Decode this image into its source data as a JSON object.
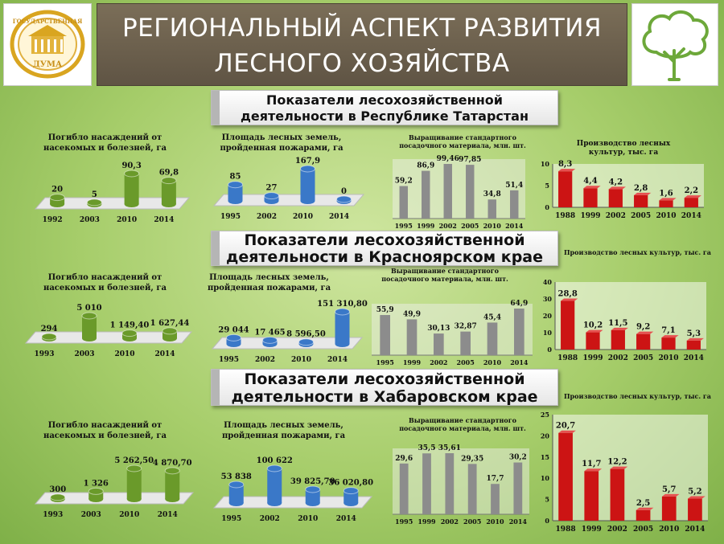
{
  "header": {
    "title_line1": "РЕГИОНАЛЬНЫЙ АСПЕКТ РАЗВИТИЯ",
    "title_line2": "ЛЕСНОГО ХОЗЯЙСТВА",
    "logo_text_top": "ГОСУДАРСТВЕННАЯ",
    "logo_text_bottom": "ДУМА"
  },
  "colors": {
    "blue": "#3a78c8",
    "green": "#6a9a2a",
    "gray": "#8c8c8c",
    "red": "#cc1414"
  },
  "sections": [
    {
      "line1": "Показатели лесохозяйственной",
      "line2": "деятельности в Республике Татарстан"
    },
    {
      "line1": "Показатели лесохозяйственной",
      "line2": "деятельности в Красноярском крае"
    },
    {
      "line1": "Показатели лесохозяйственной",
      "line2": "деятельности в Хабаровском крае"
    }
  ],
  "chart_data": [
    {
      "type": "bar",
      "style": "3d-cylinder-green",
      "title": "Погибло насаждений от насекомых и болезней, га",
      "categories": [
        "1992",
        "2003",
        "2010",
        "2014"
      ],
      "values": [
        20,
        5,
        90.3,
        69.8
      ],
      "labels": [
        "20",
        "5",
        "90,3",
        "69,8"
      ]
    },
    {
      "type": "bar",
      "style": "3d-cylinder-blue",
      "title": "Площадь лесных земель, пройденная пожарами, га",
      "categories": [
        "1995",
        "2002",
        "2010",
        "2014"
      ],
      "values": [
        85,
        27,
        167.9,
        0
      ],
      "labels": [
        "85",
        "27",
        "167,9",
        "0"
      ]
    },
    {
      "type": "bar",
      "style": "gray",
      "title": "Выращивание стандартного посадочного материала, млн. шт.",
      "categories": [
        "1995",
        "1999",
        "2002",
        "2005",
        "2010",
        "2014"
      ],
      "values": [
        59.2,
        86.9,
        99.46,
        97.85,
        34.8,
        51.4
      ],
      "labels": [
        "59,2",
        "86,9",
        "99,46",
        "97,85",
        "34,8",
        "51,4"
      ]
    },
    {
      "type": "bar",
      "style": "red",
      "title": "Производство лесных культур, тыс. га",
      "categories": [
        "1988",
        "1999",
        "2002",
        "2005",
        "2010",
        "2014"
      ],
      "values": [
        8.3,
        4.4,
        4.2,
        2.8,
        1.6,
        2.2
      ],
      "labels": [
        "8,3",
        "4,4",
        "4,2",
        "2,8",
        "1,6",
        "2,2"
      ],
      "yticks": [
        0,
        5,
        10
      ],
      "ylim": [
        0,
        10
      ]
    },
    {
      "type": "bar",
      "style": "3d-cylinder-green",
      "title": "Погибло насаждений от насекомых и болезней, га",
      "categories": [
        "1993",
        "2003",
        "2010",
        "2014"
      ],
      "values": [
        294,
        5010,
        1149.4,
        1627.44
      ],
      "labels": [
        "294",
        "5 010",
        "1 149,40",
        "1 627,44"
      ]
    },
    {
      "type": "bar",
      "style": "3d-cylinder-blue",
      "title": "Площадь лесных земель, пройденная пожарами, га",
      "categories": [
        "1995",
        "2002",
        "2010",
        "2014"
      ],
      "values": [
        29044,
        17465,
        8596.5,
        151310.8
      ],
      "labels": [
        "29 044",
        "17 465",
        "8 596,50",
        "151 310,80"
      ]
    },
    {
      "type": "bar",
      "style": "gray",
      "title": "Выращивание стандартного посадочного материала, млн. шт.",
      "categories": [
        "1995",
        "1999",
        "2002",
        "2005",
        "2010",
        "2014"
      ],
      "values": [
        55.9,
        49.9,
        30.13,
        32.87,
        45.4,
        64.9
      ],
      "labels": [
        "55,9",
        "49,9",
        "30,13",
        "32,87",
        "45,4",
        "64,9"
      ]
    },
    {
      "type": "bar",
      "style": "red",
      "title": "Производство лесных культур, тыс. га",
      "categories": [
        "1988",
        "1999",
        "2002",
        "2005",
        "2010",
        "2014"
      ],
      "values": [
        28.8,
        10.2,
        11.5,
        9.2,
        7.1,
        5.3
      ],
      "labels": [
        "28,8",
        "10,2",
        "11,5",
        "9,2",
        "7,1",
        "5,3"
      ],
      "yticks": [
        0,
        10,
        20,
        30,
        40
      ],
      "ylim": [
        0,
        40
      ]
    },
    {
      "type": "bar",
      "style": "3d-cylinder-green",
      "title": "Погибло насаждений от насекомых и болезней, га",
      "categories": [
        "1993",
        "2003",
        "2010",
        "2014"
      ],
      "values": [
        300,
        1326,
        5262.5,
        4870.7
      ],
      "labels": [
        "300",
        "1 326",
        "5 262,50",
        "4 870,70"
      ]
    },
    {
      "type": "bar",
      "style": "3d-cylinder-blue",
      "title": "Площадь лесных земель, пройденная пожарами, га",
      "categories": [
        "1995",
        "2002",
        "2010",
        "2014"
      ],
      "values": [
        53838,
        100622,
        39825.7,
        36020.8
      ],
      "labels": [
        "53 838",
        "100 622",
        "39 825,70",
        "36 020,80"
      ]
    },
    {
      "type": "bar",
      "style": "gray",
      "title": "Выращивание стандартного посадочного материала, млн. шт.",
      "categories": [
        "1995",
        "1999",
        "2002",
        "2005",
        "2010",
        "2014"
      ],
      "values": [
        29.6,
        35.5,
        35.61,
        29.35,
        17.7,
        30.2
      ],
      "labels": [
        "29,6",
        "35,5",
        "35,61",
        "29,35",
        "17,7",
        "30,2"
      ]
    },
    {
      "type": "bar",
      "style": "red",
      "title": "Производство лесных культур, тыс. га",
      "categories": [
        "1988",
        "1999",
        "2002",
        "2005",
        "2010",
        "2014"
      ],
      "values": [
        20.7,
        11.7,
        12.2,
        2.5,
        5.7,
        5.2
      ],
      "labels": [
        "20,7",
        "11,7",
        "12,2",
        "2,5",
        "5,7",
        "5,2"
      ],
      "yticks": [
        0,
        5,
        10,
        15,
        20,
        25
      ],
      "ylim": [
        0,
        25
      ]
    }
  ]
}
